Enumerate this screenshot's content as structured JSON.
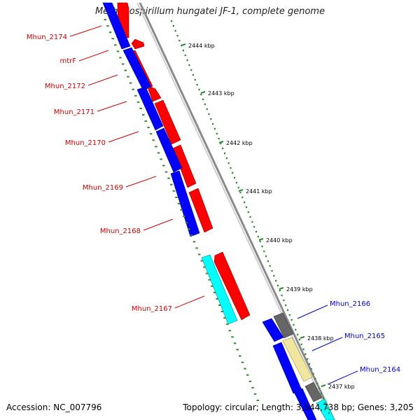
{
  "title": "Methanospirillum hungatei JF-1, complete genome",
  "footer": {
    "accession": "Accession: NC_007796",
    "summary": "Topology: circular; Length: 3,544,738 bp; Genes: 3,205"
  },
  "colors": {
    "background": "#ffffff",
    "backbone": "#8a8a8a",
    "forward_gene": "#ff0000",
    "reverse_gene": "#0000ff",
    "rna_gene": "#00ffff",
    "other_gene": "#f0e6a0",
    "pseudo_gene": "#666666",
    "tick": "#2e8b2e",
    "left_label": "#cc0000",
    "right_label": "#0000cc"
  },
  "ticks": [
    {
      "label": "2444 kbp",
      "kbp": 2444
    },
    {
      "label": "2443 kbp",
      "kbp": 2443
    },
    {
      "label": "2442 kbp",
      "kbp": 2442
    },
    {
      "label": "2441 kbp",
      "kbp": 2441
    },
    {
      "label": "2440 kbp",
      "kbp": 2440
    },
    {
      "label": "2439 kbp",
      "kbp": 2439
    },
    {
      "label": "2438 kbp",
      "kbp": 2438
    },
    {
      "label": "2437 kbp",
      "kbp": 2437
    }
  ],
  "left_labels": [
    {
      "name": "Mhun_2174"
    },
    {
      "name": "mtrF"
    },
    {
      "name": "Mhun_2172"
    },
    {
      "name": "Mhun_2171"
    },
    {
      "name": "Mhun_2170"
    },
    {
      "name": "Mhun_2169"
    },
    {
      "name": "Mhun_2168"
    },
    {
      "name": "Mhun_2167"
    }
  ],
  "right_labels": [
    {
      "name": "Mhun_2166"
    },
    {
      "name": "Mhun_2165"
    },
    {
      "name": "Mhun_2164"
    }
  ]
}
